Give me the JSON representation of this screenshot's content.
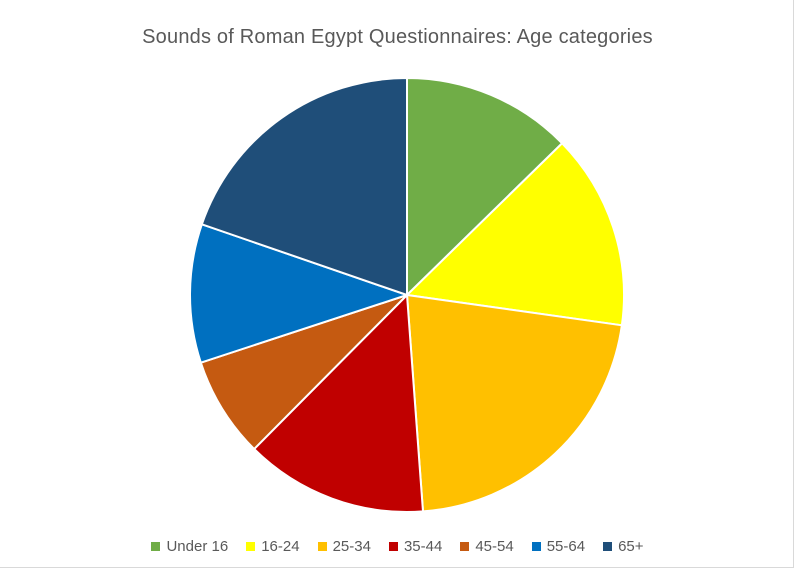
{
  "chart_data": {
    "type": "pie",
    "title": "Sounds of Roman Egypt Questionnaires: Age categories",
    "categories": [
      "Under 16",
      "16-24",
      "25-34",
      "35-44",
      "45-54",
      "55-64",
      "65+"
    ],
    "values": [
      13.5,
      15.5,
      23,
      14.5,
      8,
      11,
      21
    ],
    "colors": [
      "#70AD47",
      "#FFFF00",
      "#FFC000",
      "#C00000",
      "#C55A11",
      "#0070C0",
      "#1F4E79"
    ],
    "legend_position": "bottom",
    "start_angle": "12 o'clock, clockwise"
  }
}
